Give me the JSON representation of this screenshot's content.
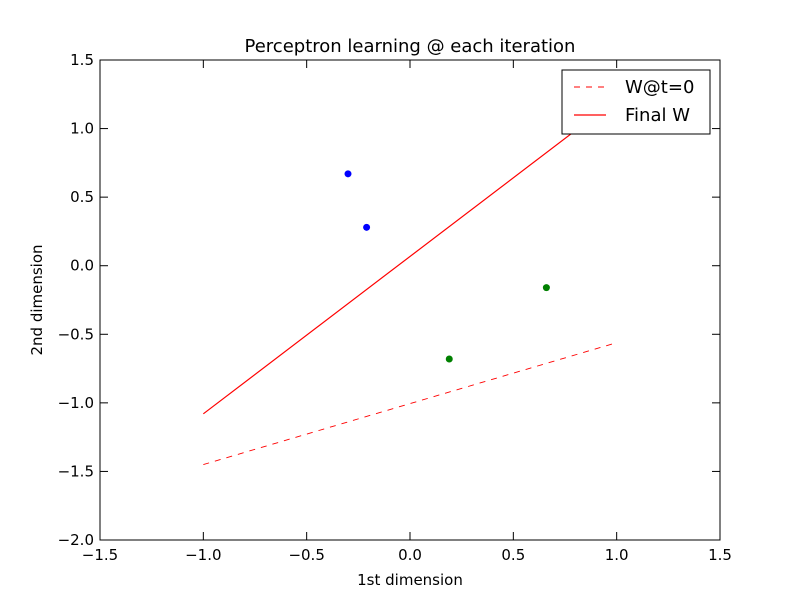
{
  "chart_data": {
    "type": "scatter",
    "title": "Perceptron learning @ each iteration",
    "xlabel": "1st dimension",
    "ylabel": "2nd dimension",
    "xlim": [
      -1.5,
      1.5
    ],
    "ylim": [
      -2.0,
      1.5
    ],
    "x_ticks": [
      -1.5,
      -1.0,
      -0.5,
      0.0,
      0.5,
      1.0,
      1.5
    ],
    "x_tick_labels": [
      "−1.5",
      "−1.0",
      "−0.5",
      "0.0",
      "0.5",
      "1.0",
      "1.5"
    ],
    "y_ticks": [
      -2.0,
      -1.5,
      -1.0,
      -0.5,
      0.0,
      0.5,
      1.0,
      1.5
    ],
    "y_tick_labels": [
      "−2.0",
      "−1.5",
      "−1.0",
      "−0.5",
      "0.0",
      "0.5",
      "1.0",
      "1.5"
    ],
    "grid": false,
    "legend_position": "top-right",
    "points": [
      {
        "x": -0.3,
        "y": 0.67,
        "color": "#0000ff"
      },
      {
        "x": -0.21,
        "y": 0.28,
        "color": "#0000ff"
      },
      {
        "x": 0.66,
        "y": -0.16,
        "color": "#008000"
      },
      {
        "x": 0.19,
        "y": -0.68,
        "color": "#008000"
      }
    ],
    "series": [
      {
        "name": "W@t=0",
        "style": "dashed",
        "color": "#ff0000",
        "x": [
          -1.0,
          0.98
        ],
        "y": [
          -1.45,
          -0.57
        ]
      },
      {
        "name": "Final W",
        "style": "solid",
        "color": "#ff0000",
        "x": [
          -1.0,
          0.9
        ],
        "y": [
          -1.08,
          1.1
        ]
      }
    ]
  }
}
